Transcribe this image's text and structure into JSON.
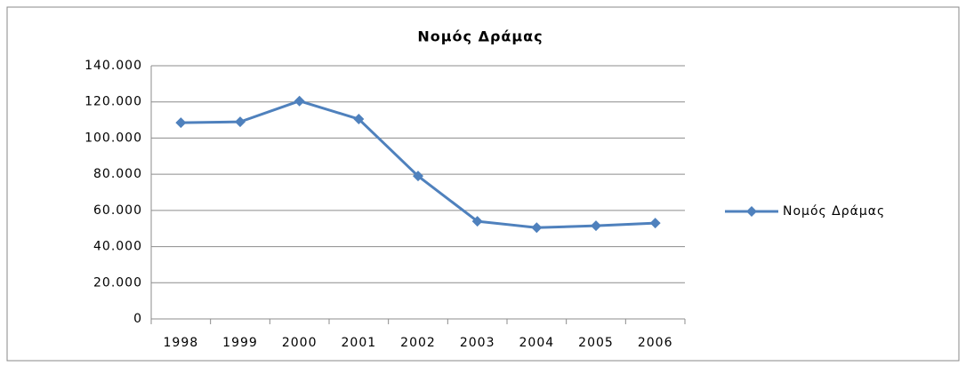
{
  "chart_data": {
    "type": "line",
    "title": "Νομός Δράμας",
    "categories": [
      "1998",
      "1999",
      "2000",
      "2001",
      "2002",
      "2003",
      "2004",
      "2005",
      "2006"
    ],
    "series": [
      {
        "name": "Νομός Δράμας",
        "color": "#4f81bd",
        "values": [
          108500,
          109000,
          120500,
          110500,
          79000,
          54000,
          50500,
          51500,
          53000
        ]
      }
    ],
    "ylim": [
      0,
      140000
    ],
    "yticks": [
      0,
      {
        "value": 20000,
        "label": "20.000"
      },
      {
        "value": 40000,
        "label": "40.000"
      },
      {
        "value": 60000,
        "label": "60.000"
      },
      {
        "value": 80000,
        "label": "80.000"
      },
      {
        "value": 100000,
        "label": "100.000"
      },
      {
        "value": 120000,
        "label": "120.000"
      },
      {
        "value": 140000,
        "label": "140.000"
      }
    ],
    "grid": true,
    "legend": "right"
  }
}
